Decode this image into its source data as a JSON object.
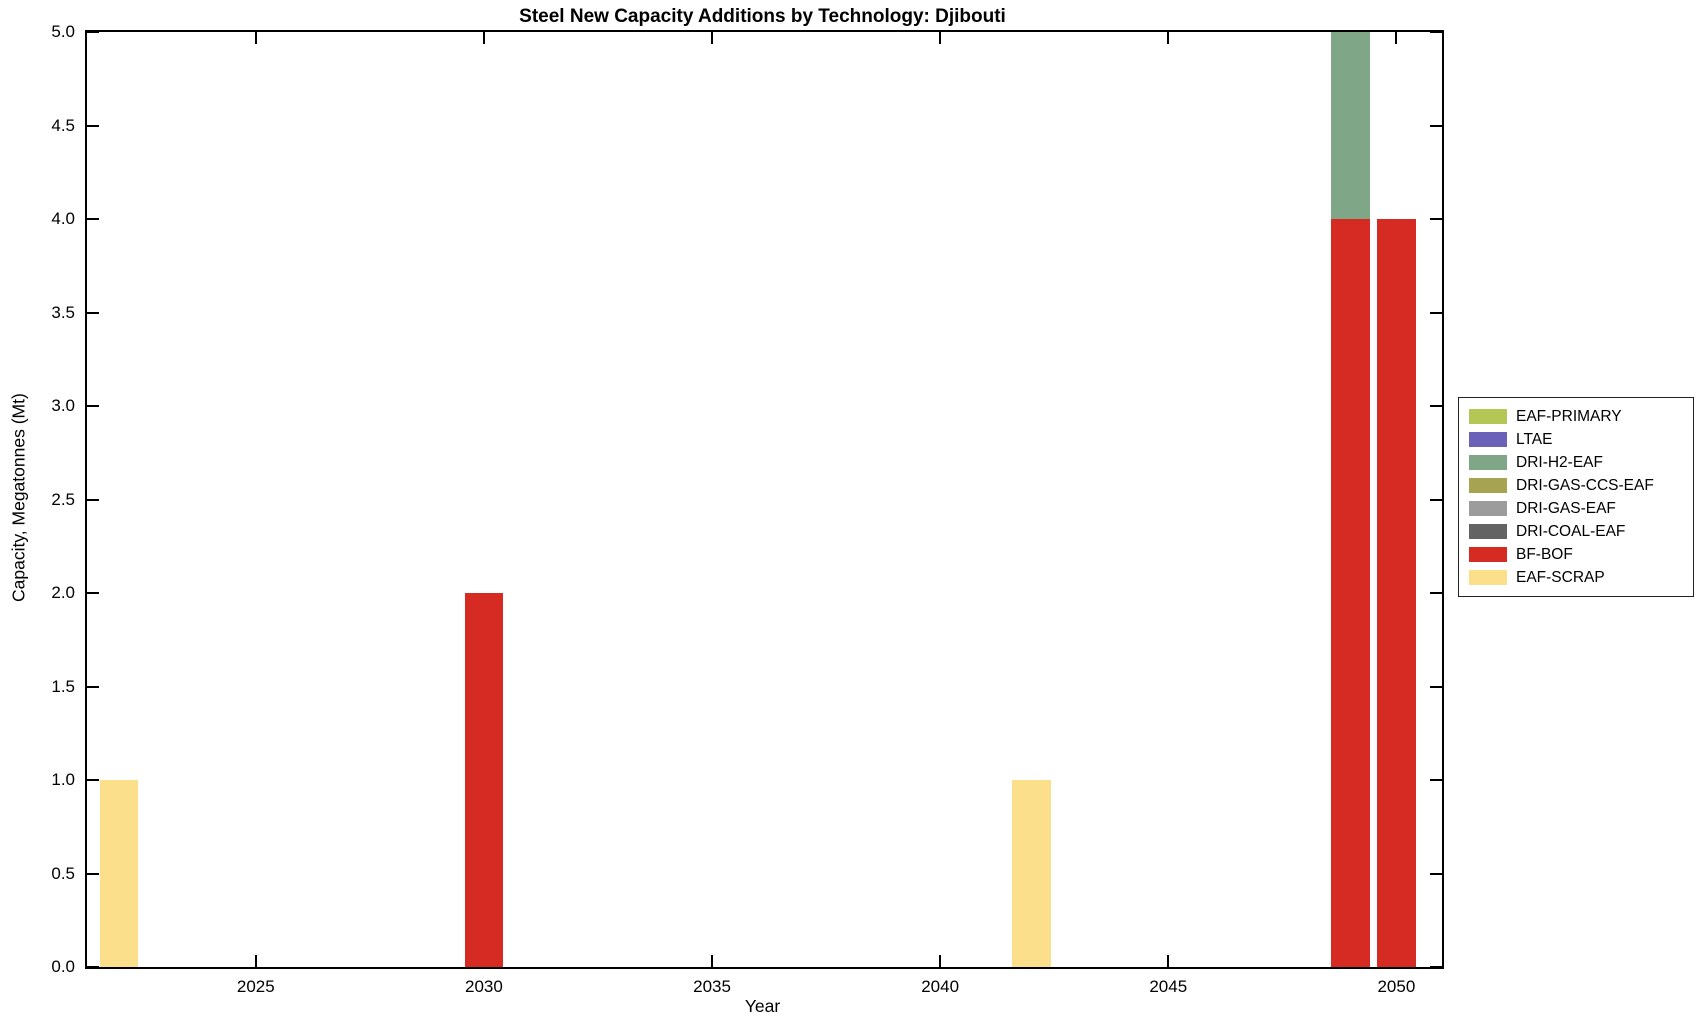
{
  "chart_data": {
    "type": "bar",
    "stacked": true,
    "title": "Steel New Capacity Additions by Technology: Djibouti",
    "xlabel": "Year",
    "ylabel": "Capacity, Megatonnes (Mt)",
    "xlim": [
      2021.3,
      2051.0
    ],
    "ylim": [
      0,
      5
    ],
    "grid": false,
    "legend_position": "outside-right",
    "bar_width_years": 0.85,
    "xtick_labels": [
      "2025",
      "2030",
      "2035",
      "2040",
      "2045",
      "2050"
    ],
    "ytick_labels": [
      "0.0",
      "0.5",
      "1.0",
      "1.5",
      "2.0",
      "2.5",
      "3.0",
      "3.5",
      "4.0",
      "4.5",
      "5.0"
    ],
    "series_colors": {
      "EAF-PRIMARY": "#b4c653",
      "LTAE": "#6c61b8",
      "DRI-H2-EAF": "#7ea687",
      "DRI-GAS-CCS-EAF": "#a6a353",
      "DRI-GAS-EAF": "#9c9c9c",
      "DRI-COAL-EAF": "#636363",
      "BF-BOF": "#d62b23",
      "EAF-SCRAP": "#fbdf8b"
    },
    "legend": [
      "EAF-PRIMARY",
      "LTAE",
      "DRI-H2-EAF",
      "DRI-GAS-CCS-EAF",
      "DRI-GAS-EAF",
      "DRI-COAL-EAF",
      "BF-BOF",
      "EAF-SCRAP"
    ],
    "bars": [
      {
        "year": 2022,
        "segments": [
          {
            "series": "EAF-SCRAP",
            "value": 1.0
          }
        ]
      },
      {
        "year": 2030,
        "segments": [
          {
            "series": "BF-BOF",
            "value": 2.0
          }
        ]
      },
      {
        "year": 2042,
        "segments": [
          {
            "series": "EAF-SCRAP",
            "value": 1.0
          }
        ]
      },
      {
        "year": 2049,
        "segments": [
          {
            "series": "BF-BOF",
            "value": 4.0
          },
          {
            "series": "DRI-H2-EAF",
            "value": 1.0
          }
        ]
      },
      {
        "year": 2050,
        "segments": [
          {
            "series": "BF-BOF",
            "value": 4.0
          }
        ]
      }
    ]
  }
}
